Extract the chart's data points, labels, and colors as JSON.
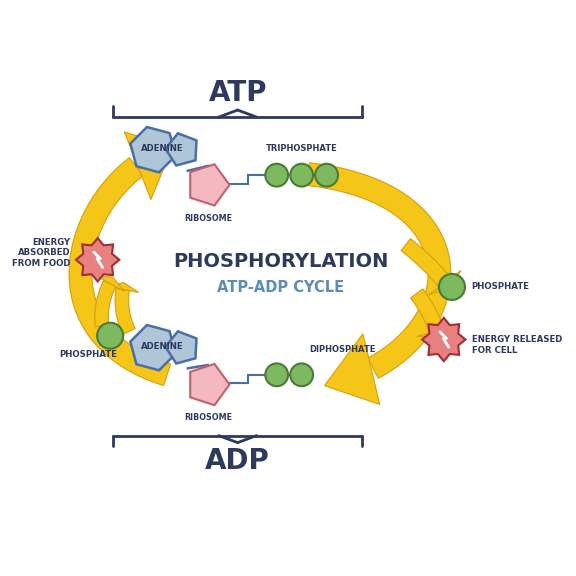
{
  "title_main": "PHOSPHORYLATION",
  "title_sub": "ATP-ADP CYCLE",
  "label_atp": "ATP",
  "label_adp": "ADP",
  "label_adenine_top": "ADENINE",
  "label_adenine_bottom": "ADENINE",
  "label_ribosome_top": "RIBOSOME",
  "label_ribosome_bottom": "RIBOSOME",
  "label_triphosphate": "TRIPHOSPHATE",
  "label_diphosphate": "DIPHOSPHATE",
  "label_phosphate_right": "PHOSPHATE",
  "label_phosphate_left": "PHOSPHATE",
  "label_energy_released": "ENERGY RELEASED\nFOR CELL",
  "label_energy_absorbed": "ENERGY\nABSORBED\nFROM FOOD",
  "color_bg": "#ffffff",
  "color_adenine_fill": "#aec6d8",
  "color_adenine_stroke": "#4a6fa5",
  "color_ribosome_fill": "#f4b8c1",
  "color_ribosome_stroke": "#c06070",
  "color_phosphate_fill": "#7dba5f",
  "color_phosphate_stroke": "#4a7a35",
  "color_arrow": "#f5c518",
  "color_arrow_stroke": "#d4a010",
  "color_energy_fill": "#e88080",
  "color_energy_stroke": "#a03030",
  "color_bracket": "#2d3a5e",
  "color_label_main": "#2d3a5e",
  "color_label_sub": "#5b8db8",
  "color_connector": "#4a6fa5",
  "fig_w": 5.76,
  "fig_h": 5.76,
  "dpi": 100
}
